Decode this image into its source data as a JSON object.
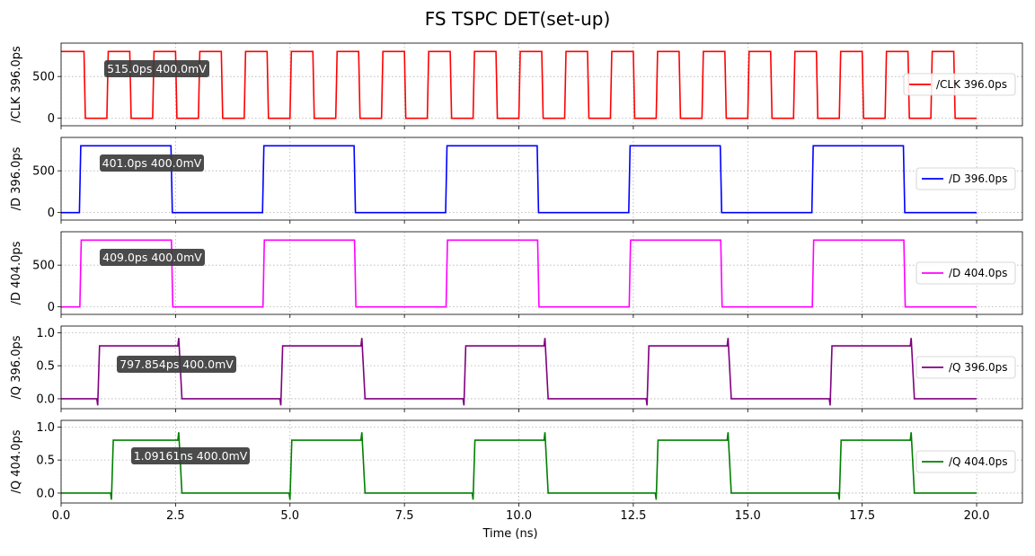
{
  "title": "FS TSPC DET(set-up)",
  "chart_data": [
    {
      "type": "line",
      "ylabel": "/CLK 396.0ps",
      "ylim": [
        -90,
        900
      ],
      "yticks": [
        0,
        500
      ],
      "ytick_labels": [
        "0",
        "500"
      ],
      "color": "#ff0000",
      "legend": "/CLK 396.0ps",
      "legend_position": "center-right",
      "annotation": "515.0ps 400.0mV",
      "kind": "clk",
      "high": 800,
      "low": 0,
      "start_high": true,
      "period_ns": 1.0,
      "first_edge_ns": 0.5,
      "edge_ns": 0.03,
      "end_ns": 20.0
    },
    {
      "type": "line",
      "ylabel": "/D 396.0ps",
      "ylim": [
        -90,
        900
      ],
      "yticks": [
        0,
        500
      ],
      "ytick_labels": [
        "0",
        "500"
      ],
      "color": "#0000ff",
      "legend": "/D 396.0ps",
      "legend_position": "center-right",
      "annotation": "401.0ps 400.0mV",
      "kind": "data",
      "high": 800,
      "low": 0,
      "rise_ns": [
        0.4,
        4.4,
        8.4,
        12.4,
        16.4
      ],
      "fall_ns": [
        2.4,
        6.4,
        10.4,
        14.4,
        18.4
      ],
      "edge_ns": 0.03,
      "end_ns": 20.0
    },
    {
      "type": "line",
      "ylabel": "/D 404.0ps",
      "ylim": [
        -90,
        900
      ],
      "yticks": [
        0,
        500
      ],
      "ytick_labels": [
        "0",
        "500"
      ],
      "color": "#ff00ff",
      "legend": "/D 404.0ps",
      "legend_position": "center-right",
      "annotation": "409.0ps 400.0mV",
      "kind": "data",
      "high": 800,
      "low": 0,
      "rise_ns": [
        0.41,
        4.41,
        8.41,
        12.41,
        16.41
      ],
      "fall_ns": [
        2.41,
        6.41,
        10.41,
        14.41,
        18.41
      ],
      "edge_ns": 0.03,
      "end_ns": 20.0
    },
    {
      "type": "line",
      "ylabel": "/Q 396.0ps",
      "ylim": [
        -0.15,
        1.1
      ],
      "yticks": [
        0.0,
        0.5,
        1.0
      ],
      "ytick_labels": [
        "0.0",
        "0.5",
        "1.0"
      ],
      "color": "#800080",
      "legend": "/Q 396.0ps",
      "legend_position": "center-right",
      "annotation": "797.854ps 400.0mV",
      "kind": "q",
      "high": 0.8,
      "low": 0.0,
      "overshoot": 0.92,
      "undershoot": -0.1,
      "rise_ns": [
        0.8,
        4.8,
        8.8,
        12.8,
        16.8
      ],
      "fall_ns": [
        2.6,
        6.6,
        10.6,
        14.6,
        18.6
      ],
      "edge_ns": 0.04,
      "end_ns": 20.0
    },
    {
      "type": "line",
      "ylabel": "/Q 404.0ps",
      "xlabel": "Time (ns)",
      "ylim": [
        -0.15,
        1.1
      ],
      "yticks": [
        0.0,
        0.5,
        1.0
      ],
      "ytick_labels": [
        "0.0",
        "0.5",
        "1.0"
      ],
      "xticks": [
        0.0,
        2.5,
        5.0,
        7.5,
        10.0,
        12.5,
        15.0,
        17.5,
        20.0
      ],
      "xtick_labels": [
        "0.0",
        "2.5",
        "5.0",
        "7.5",
        "10.0",
        "12.5",
        "15.0",
        "17.5",
        "20.0"
      ],
      "color": "#008000",
      "legend": "/Q 404.0ps",
      "legend_position": "center-right",
      "annotation": "1.09161ns 400.0mV",
      "kind": "q",
      "high": 0.8,
      "low": 0.0,
      "overshoot": 0.92,
      "undershoot": -0.1,
      "rise_ns": [
        1.1,
        5.0,
        9.0,
        13.0,
        17.0
      ],
      "fall_ns": [
        2.6,
        6.6,
        10.6,
        14.6,
        18.6
      ],
      "edge_ns": 0.04,
      "end_ns": 20.0
    }
  ],
  "xlim": [
    0,
    21.0
  ],
  "grid": true
}
